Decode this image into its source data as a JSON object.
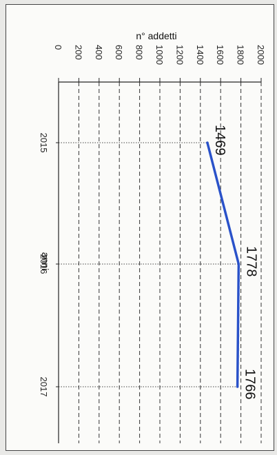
{
  "chart_data": {
    "type": "line",
    "title": "",
    "xlabel": "anni",
    "ylabel": "n° addetti",
    "x": [
      "2015",
      "2016",
      "2017"
    ],
    "series": [
      {
        "values": [
          1469,
          1778,
          1766
        ],
        "color": "#2a52c9"
      }
    ],
    "data_labels": [
      "1469",
      "1778",
      "1766"
    ],
    "ylim": [
      0,
      2000
    ],
    "yticks": [
      0,
      200,
      400,
      600,
      800,
      1000,
      1200,
      1400,
      1600,
      1800,
      2000
    ],
    "ytick_labels": [
      "0",
      "200",
      "400",
      "600",
      "800",
      "1000",
      "1200",
      "1400",
      "1600",
      "1800",
      "2000"
    ],
    "grid": true,
    "orientation": "rotated-90"
  }
}
